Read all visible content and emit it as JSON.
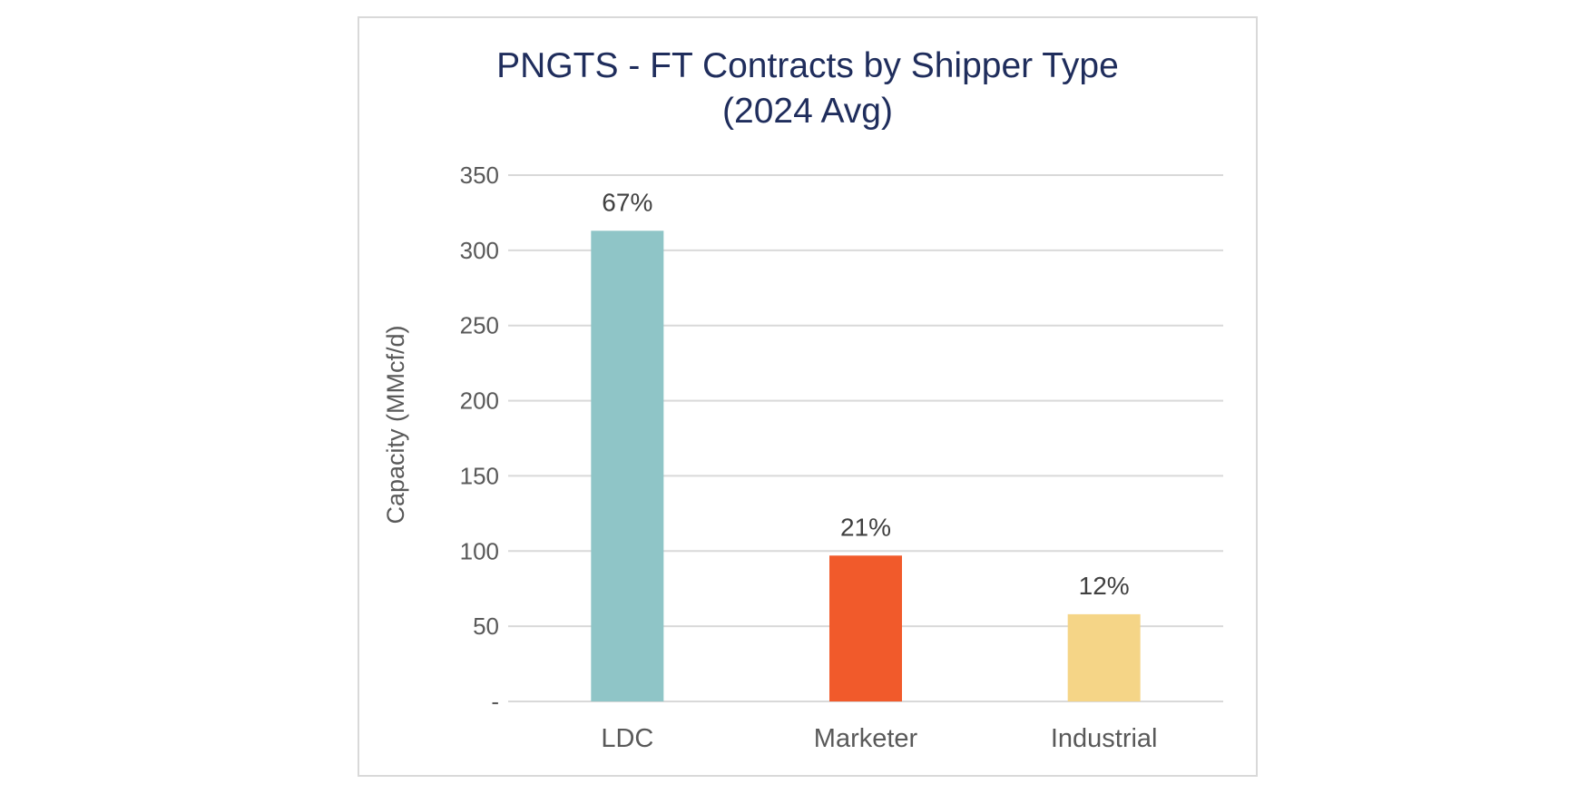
{
  "chart_data": {
    "type": "bar",
    "title_lines": [
      "PNGTS - FT Contracts by Shipper Type",
      "(2024 Avg)"
    ],
    "xlabel": "",
    "ylabel": "Capacity (MMcf/d)",
    "categories": [
      "LDC",
      "Marketer",
      "Industrial"
    ],
    "values": [
      313,
      97,
      58
    ],
    "data_labels": [
      "67%",
      "21%",
      "12%"
    ],
    "ylim": [
      0,
      350
    ],
    "yticks": [
      0,
      50,
      100,
      150,
      200,
      250,
      300,
      350
    ],
    "ytick_labels": [
      "-",
      "50",
      "100",
      "150",
      "200",
      "250",
      "300",
      "350"
    ],
    "grid": true,
    "legend": "none",
    "colors": [
      "#8fc5c7",
      "#f15a2b",
      "#f5d587"
    ]
  }
}
